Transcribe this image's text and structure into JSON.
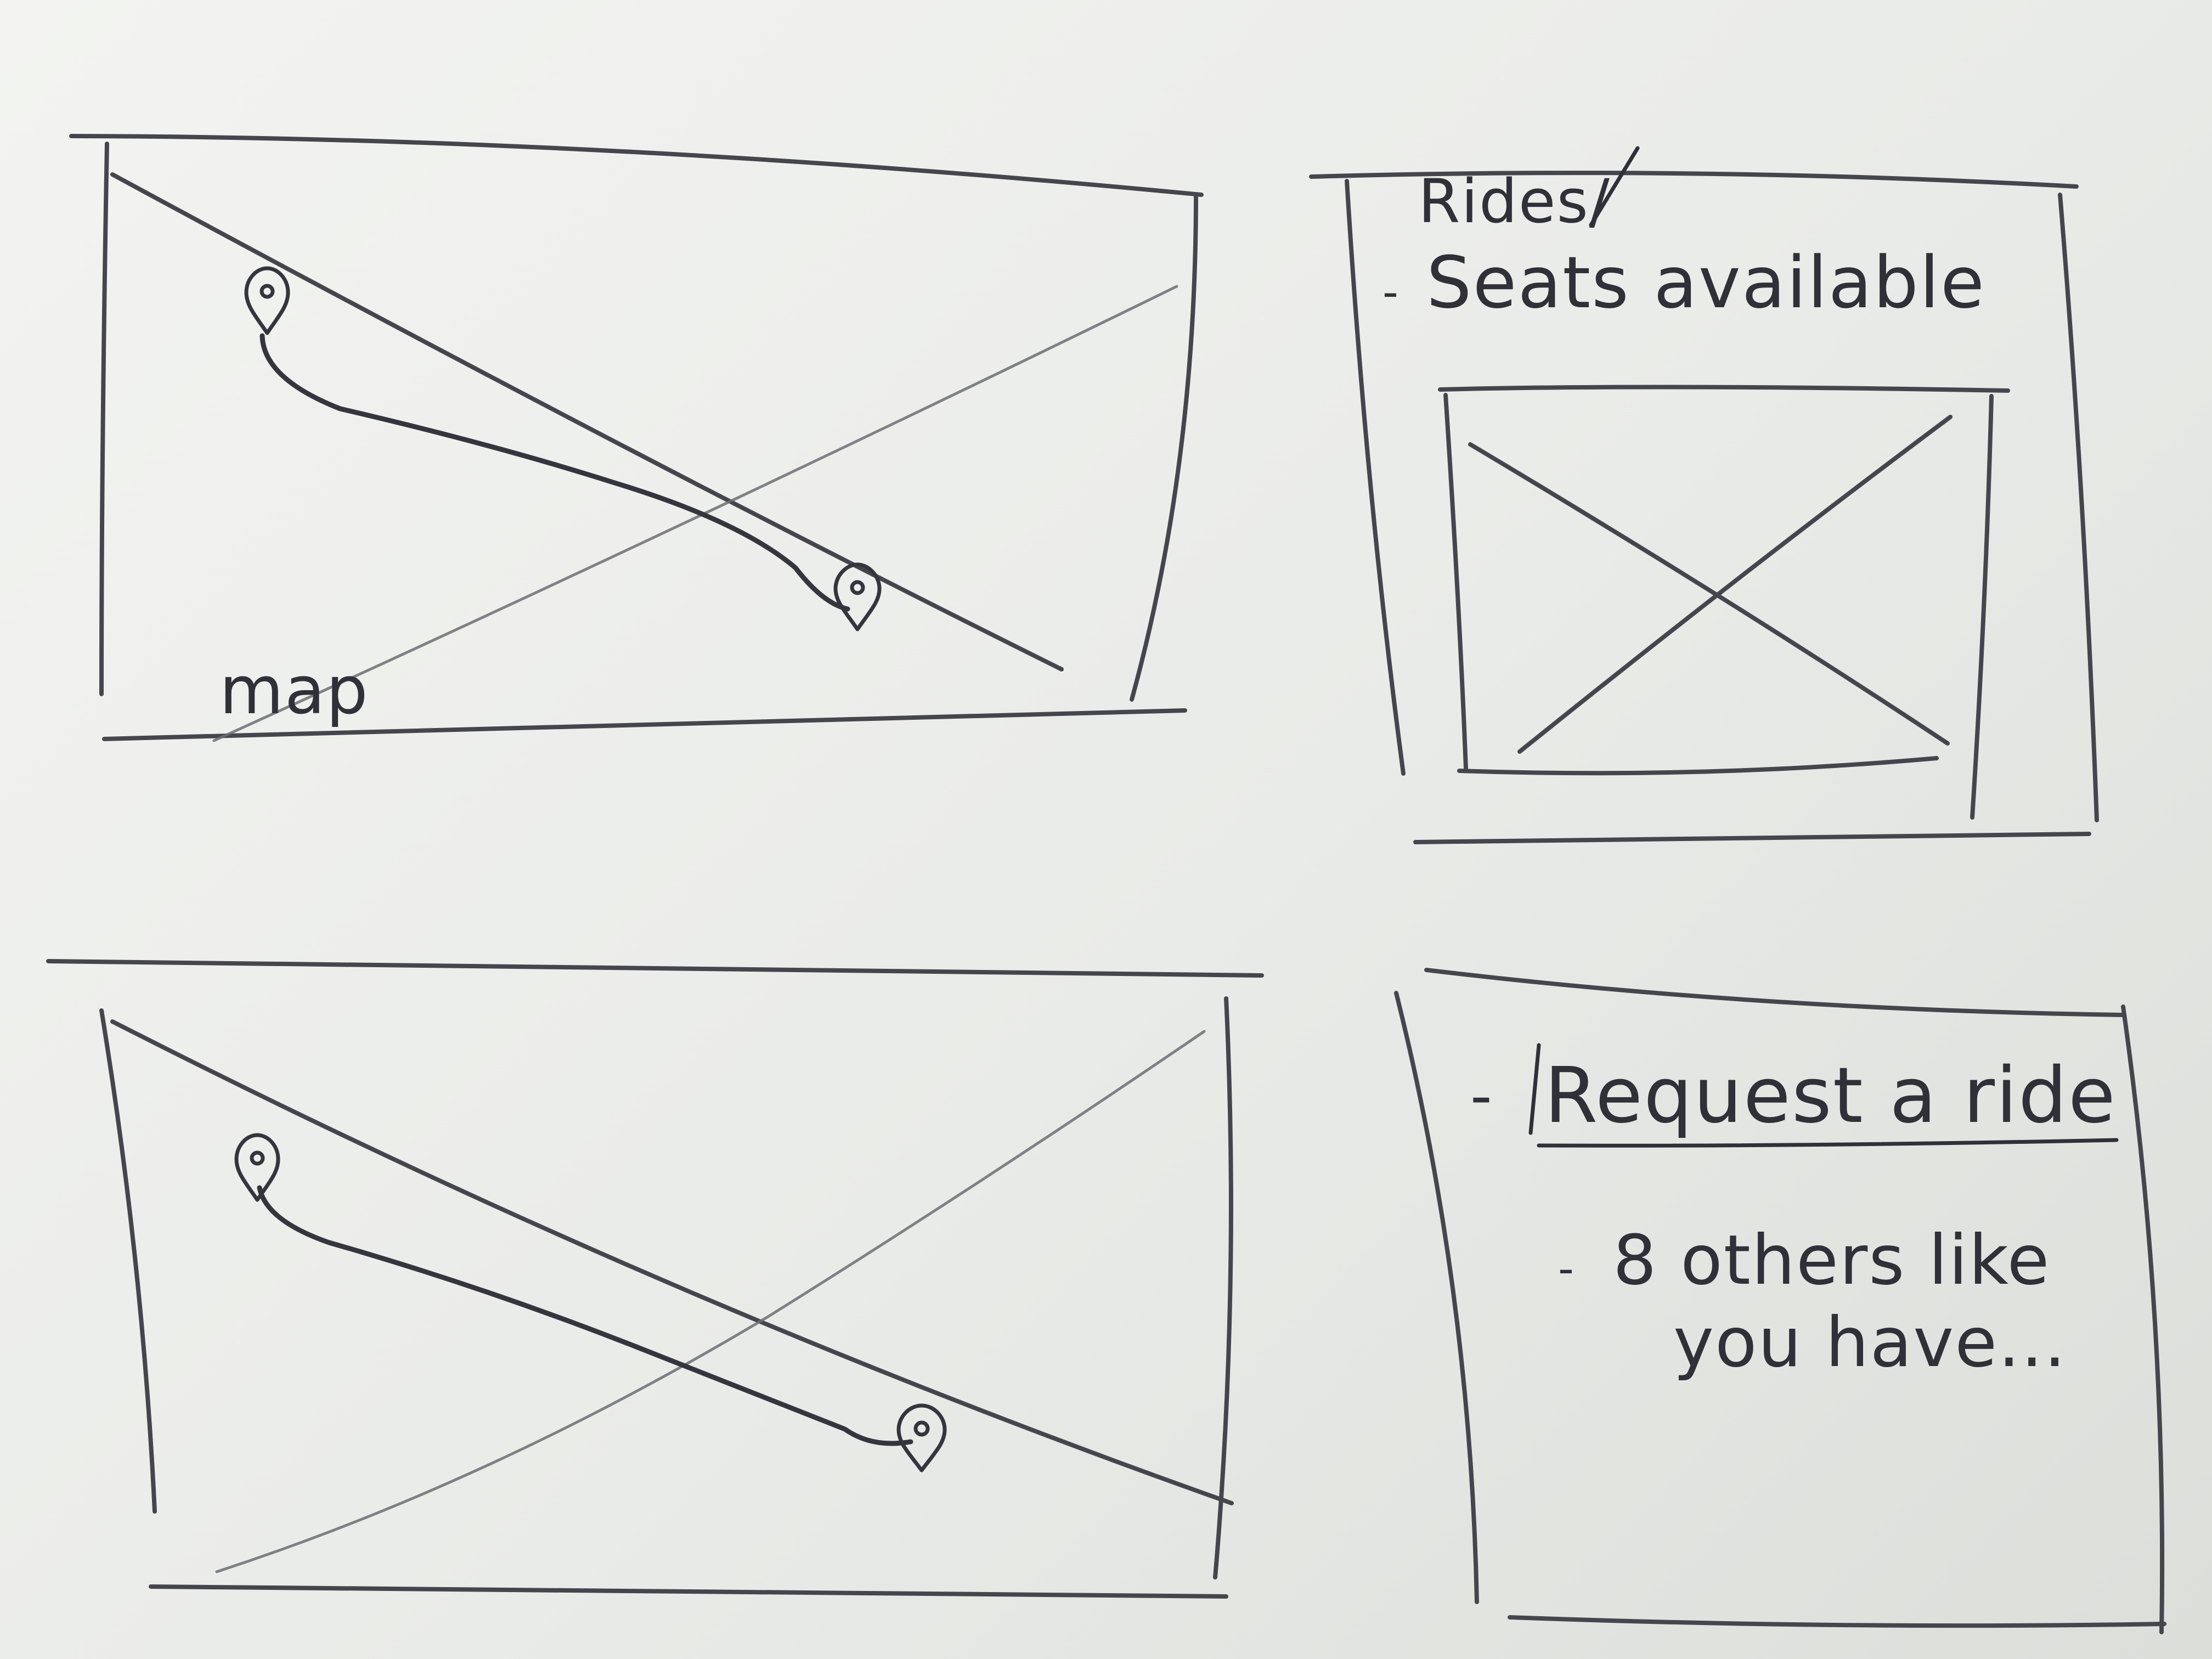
{
  "map_panel": {
    "label": "map"
  },
  "rides_panel": {
    "title": "Rides/",
    "subtitle": "Seats available",
    "bullet": "-"
  },
  "request_panel": {
    "bullet": "-",
    "action_label": "Request a ride",
    "info_bullet": "-",
    "info_line_1": "8 others like",
    "info_line_2": "you have..."
  },
  "icons": {
    "pin": "map-pin-icon",
    "image_placeholder": "image-placeholder-icon"
  },
  "colors": {
    "pencil": "#45464d",
    "paper": "#eef0ec"
  }
}
